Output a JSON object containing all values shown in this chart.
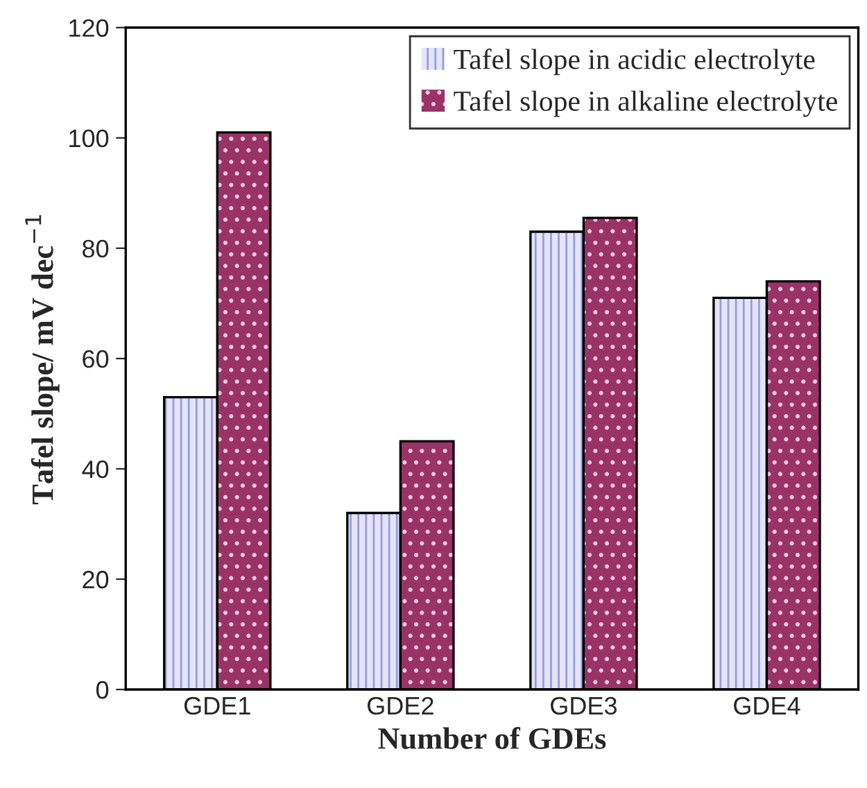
{
  "chart_data": {
    "type": "bar",
    "xlabel": "Number of GDEs",
    "ylabel": "Tafel slope/ mV dec$^{−1}$",
    "categories": [
      "GDE1",
      "GDE2",
      "GDE3",
      "GDE4"
    ],
    "series": [
      {
        "name": "Tafel slope in acidic electrolyte",
        "color": "#e4e4f8",
        "values": [
          53,
          32,
          83,
          71
        ]
      },
      {
        "name": "Tafel slope in alkaline electrolyte",
        "color": "#993366",
        "values": [
          101,
          45,
          85.5,
          74
        ]
      }
    ],
    "ylim": [
      0,
      120
    ],
    "yticks": [
      0,
      20,
      40,
      60,
      80,
      100,
      120
    ],
    "grid": false,
    "legend": "top right"
  }
}
